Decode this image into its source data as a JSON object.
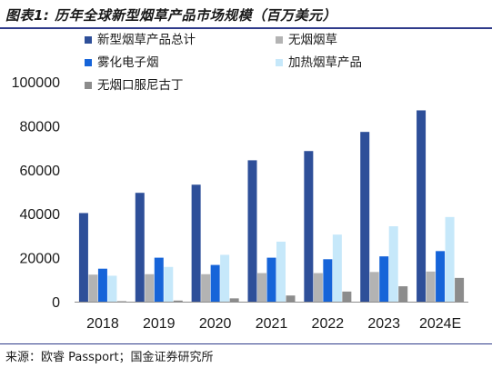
{
  "header": {
    "title": "图表1: 历年全球新型烟草产品市场规模（百万美元）"
  },
  "footer": {
    "source": "来源：欧睿 Passport；国金证券研究所"
  },
  "chart_data": {
    "type": "bar",
    "title": "历年全球新型烟草产品市场规模（百万美元）",
    "xlabel": "",
    "ylabel": "",
    "categories": [
      "2018",
      "2019",
      "2020",
      "2021",
      "2022",
      "2023",
      "2024E"
    ],
    "ylim": [
      0,
      100000
    ],
    "yticks": [
      0,
      20000,
      40000,
      60000,
      80000,
      100000
    ],
    "ytick_labels": [
      "0",
      "20000",
      "40000",
      "60000",
      "80000",
      "100000"
    ],
    "grid": false,
    "legend_placement": "top",
    "series": [
      {
        "name": "新型烟草产品总计",
        "color": "#2e4f99",
        "values": [
          40300,
          49500,
          53200,
          64300,
          68500,
          77200,
          87000
        ]
      },
      {
        "name": "无烟烟草",
        "color": "#b3b3b3",
        "values": [
          12300,
          12500,
          12500,
          13000,
          13000,
          13500,
          13700
        ]
      },
      {
        "name": "雾化电子烟",
        "color": "#1664d9",
        "values": [
          15000,
          20000,
          16700,
          20000,
          19300,
          20600,
          23000
        ]
      },
      {
        "name": "加热烟草产品",
        "color": "#c6e8fa",
        "values": [
          11800,
          15800,
          21300,
          27300,
          30500,
          34300,
          38500
        ]
      },
      {
        "name": "无烟口服尼古丁",
        "color": "#8c8c8c",
        "values": [
          200,
          500,
          1500,
          2800,
          4600,
          7000,
          10800
        ]
      }
    ]
  }
}
